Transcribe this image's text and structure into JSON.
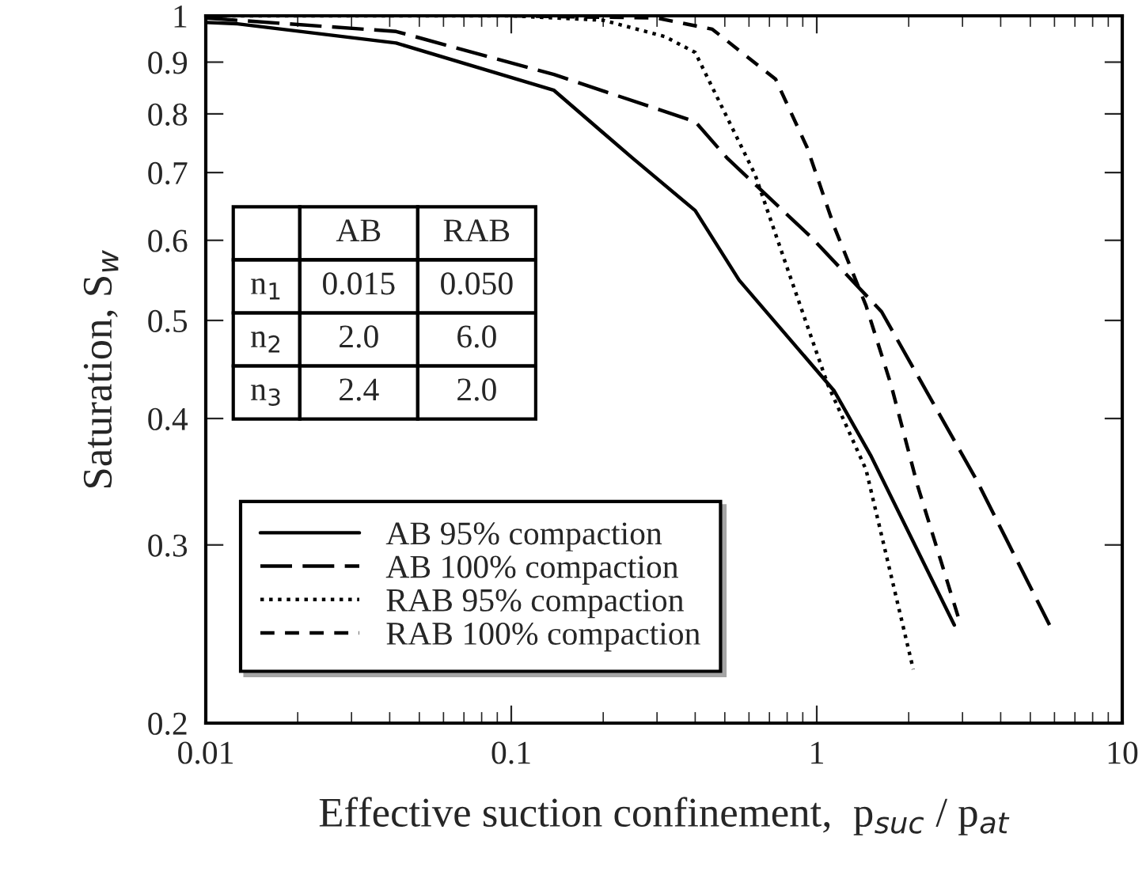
{
  "chart_data": {
    "type": "line",
    "xlabel": "Effective suction confinement,  p$_{suc}$ / p$_{at}$",
    "ylabel": "Saturation, S$_{w}$",
    "log": "xy",
    "xlim": [
      0.01,
      10
    ],
    "ylim": [
      0.2,
      1
    ],
    "xticks": [
      0.01,
      0.1,
      1,
      10
    ],
    "yticks": [
      0.2,
      0.3,
      0.4,
      0.5,
      0.6,
      0.7,
      0.8,
      0.9,
      1
    ],
    "grid": false,
    "legend": "bottom left",
    "marker": "none",
    "annotations": [
      "AB",
      "RAB",
      "n$_{1}$",
      "0.015",
      "0.050",
      "n$_{2}$",
      "2.0",
      "6.0",
      "n$_{3}$",
      "2.4",
      "2.0"
    ],
    "series": [
      {
        "name": "AB 95% compaction",
        "color": "#000000",
        "line_style": "solid",
        "x": [
          0.01,
          0.0127,
          0.042,
          0.138,
          0.25,
          0.4,
          0.557,
          1.14,
          1.5,
          2.82
        ],
        "values": [
          0.985,
          0.982,
          0.94,
          0.844,
          0.723,
          0.642,
          0.548,
          0.426,
          0.368,
          0.25
        ]
      },
      {
        "name": "AB 100% compaction",
        "color": "#000000",
        "line_style": "dashed",
        "x": [
          0.01,
          0.042,
          0.138,
          0.4,
          0.51,
          0.96,
          1.63,
          3.33,
          5.78
        ],
        "values": [
          0.995,
          0.965,
          0.875,
          0.786,
          0.723,
          0.604,
          0.51,
          0.348,
          0.25
        ]
      },
      {
        "name": "RAB 95% compaction",
        "color": "#000000",
        "line_style": "dotted",
        "x": [
          0.01,
          0.1,
          0.2,
          0.318,
          0.4,
          0.628,
          0.826,
          1.087,
          1.45,
          2.07
        ],
        "values": [
          1,
          1,
          0.99,
          0.954,
          0.92,
          0.697,
          0.548,
          0.432,
          0.356,
          0.226
        ]
      },
      {
        "name": "RAB 100% compaction",
        "color": "#000000",
        "line_style": "dashed",
        "x": [
          0.1,
          0.3,
          0.455,
          0.733,
          0.93,
          1.14,
          1.45,
          1.75,
          2.14,
          2.96
        ],
        "values": [
          1,
          0.995,
          0.97,
          0.866,
          0.741,
          0.619,
          0.517,
          0.432,
          0.343,
          0.25
        ]
      }
    ]
  }
}
